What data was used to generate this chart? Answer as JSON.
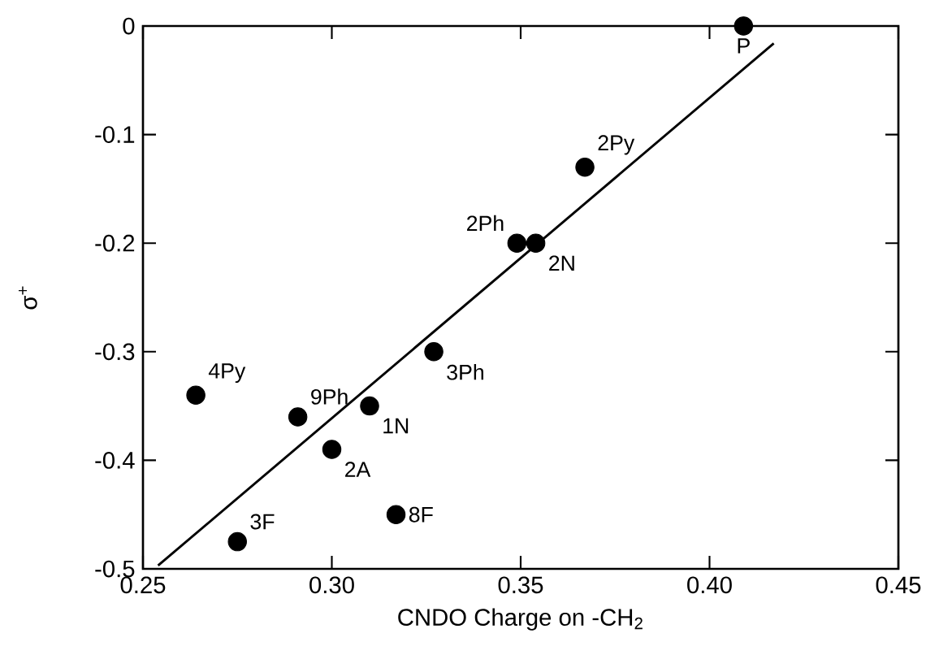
{
  "chart_data": {
    "type": "scatter",
    "xlabel": "CNDO Charge on -CH$_{2}$",
    "ylabel": "σ$^{+}$",
    "xlim": [
      0.25,
      0.45
    ],
    "ylim": [
      -0.5,
      0
    ],
    "xticks": [
      0.25,
      {
        "value": 0.3,
        "label": "0.30"
      },
      0.35,
      {
        "value": 0.4,
        "label": "0.40"
      },
      0.45
    ],
    "yticks": [
      -0.5,
      -0.4,
      -0.3,
      -0.2,
      -0.1,
      0
    ],
    "series": [
      {
        "color": "#000000",
        "marker": "circle",
        "x": [
          0.409,
          0.367,
          0.349,
          0.354,
          0.327,
          0.264,
          0.291,
          0.31,
          0.3,
          0.317,
          0.275
        ],
        "values": [
          0,
          -0.13,
          -0.2,
          -0.2,
          -0.3,
          -0.34,
          -0.36,
          -0.35,
          -0.39,
          -0.45,
          -0.475
        ]
      },
      {
        "type": "line",
        "color": "#000000",
        "line_style": "solid",
        "x": [
          0.254,
          0.417
        ],
        "values": [
          -0.497,
          -0.016
        ]
      }
    ],
    "annotations": [
      {
        "text": "P",
        "x": 0.409,
        "y": 0
      },
      {
        "text": "2Py",
        "x": 0.367,
        "y": -0.13
      },
      {
        "text": "2Ph",
        "x": 0.349,
        "y": -0.2
      },
      {
        "text": "2N",
        "x": 0.354,
        "y": -0.2
      },
      {
        "text": "3Ph",
        "x": 0.327,
        "y": -0.3
      },
      {
        "text": "4Py",
        "x": 0.264,
        "y": -0.34
      },
      {
        "text": "9Ph",
        "x": 0.291,
        "y": -0.36
      },
      {
        "text": "1N",
        "x": 0.31,
        "y": -0.35
      },
      {
        "text": "2A",
        "x": 0.3,
        "y": -0.39
      },
      {
        "text": "8F",
        "x": 0.317,
        "y": -0.45
      },
      {
        "text": "3F",
        "x": 0.275,
        "y": -0.475
      }
    ]
  }
}
